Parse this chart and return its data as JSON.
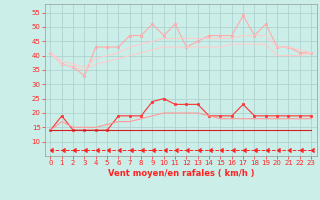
{
  "x": [
    0,
    1,
    2,
    3,
    4,
    5,
    6,
    7,
    8,
    9,
    10,
    11,
    12,
    13,
    14,
    15,
    16,
    17,
    18,
    19,
    20,
    21,
    22,
    23
  ],
  "series": [
    {
      "name": "rafales_max",
      "color": "#ffaaaa",
      "linewidth": 0.8,
      "marker": "s",
      "markersize": 2,
      "values": [
        41,
        37,
        36,
        33,
        43,
        43,
        43,
        47,
        47,
        51,
        47,
        51,
        43,
        45,
        47,
        47,
        47,
        54,
        47,
        51,
        43,
        43,
        41,
        41
      ]
    },
    {
      "name": "rafales_upper",
      "color": "#ffcccc",
      "linewidth": 0.8,
      "marker": null,
      "markersize": 0,
      "values": [
        41,
        38,
        37,
        36,
        39,
        40,
        41,
        43,
        44,
        45,
        46,
        46,
        46,
        46,
        46,
        46,
        46,
        47,
        47,
        47,
        43,
        43,
        42,
        41
      ]
    },
    {
      "name": "rafales_lower",
      "color": "#ffcccc",
      "linewidth": 0.8,
      "marker": null,
      "markersize": 0,
      "values": [
        41,
        37,
        36,
        35,
        37,
        38,
        39,
        40,
        41,
        42,
        43,
        43,
        43,
        43,
        43,
        43,
        44,
        44,
        44,
        44,
        40,
        40,
        40,
        41
      ]
    },
    {
      "name": "vent_max",
      "color": "#ff3333",
      "linewidth": 0.8,
      "marker": "s",
      "markersize": 2,
      "values": [
        14,
        19,
        14,
        14,
        14,
        14,
        19,
        19,
        19,
        24,
        25,
        23,
        23,
        23,
        19,
        19,
        19,
        23,
        19,
        19,
        19,
        19,
        19,
        19
      ]
    },
    {
      "name": "vent_upper",
      "color": "#ff9999",
      "linewidth": 0.8,
      "marker": null,
      "markersize": 0,
      "values": [
        14,
        17,
        15,
        15,
        15,
        16,
        17,
        17,
        18,
        19,
        20,
        20,
        20,
        20,
        19,
        18,
        18,
        18,
        18,
        18,
        18,
        18,
        18,
        18
      ]
    },
    {
      "name": "vent_lower",
      "color": "#cc2222",
      "linewidth": 0.8,
      "marker": null,
      "markersize": 0,
      "values": [
        14,
        14,
        14,
        14,
        14,
        14,
        14,
        14,
        14,
        14,
        14,
        14,
        14,
        14,
        14,
        14,
        14,
        14,
        14,
        14,
        14,
        14,
        14,
        14
      ]
    },
    {
      "name": "bottom_markers",
      "color": "#ff2222",
      "linewidth": 0.7,
      "marker": 4,
      "markersize": 2.5,
      "values": [
        7,
        7,
        7,
        7,
        7,
        7,
        7,
        7,
        7,
        7,
        7,
        7,
        7,
        7,
        7,
        7,
        7,
        7,
        7,
        7,
        7,
        7,
        7,
        7
      ]
    }
  ],
  "xlabel": "Vent moyen/en rafales ( km/h )",
  "ylim": [
    5,
    58
  ],
  "xlim": [
    -0.5,
    23.5
  ],
  "yticks": [
    10,
    15,
    20,
    25,
    30,
    35,
    40,
    45,
    50,
    55
  ],
  "xticks": [
    0,
    1,
    2,
    3,
    4,
    5,
    6,
    7,
    8,
    9,
    10,
    11,
    12,
    13,
    14,
    15,
    16,
    17,
    18,
    19,
    20,
    21,
    22,
    23
  ],
  "bg_color": "#cceee8",
  "grid_color": "#aacccc",
  "tick_color": "#ff2222",
  "label_color": "#ff2222"
}
